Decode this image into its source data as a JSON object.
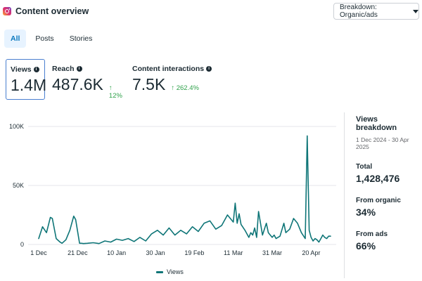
{
  "header": {
    "title": "Content overview",
    "breakdown_label": "Breakdown: Organic/ads"
  },
  "tabs": [
    {
      "label": "All",
      "active": true
    },
    {
      "label": "Posts",
      "active": false
    },
    {
      "label": "Stories",
      "active": false
    }
  ],
  "metrics": [
    {
      "label": "Views",
      "value": "1.4M",
      "change": "",
      "selected": true
    },
    {
      "label": "Reach",
      "value": "487.6K",
      "change": "12%",
      "selected": false
    },
    {
      "label": "Content interactions",
      "value": "7.5K",
      "change": "262.4%",
      "selected": false
    }
  ],
  "colors": {
    "line": "#0e7577",
    "positive": "#31a24c",
    "selected_border": "#4a7fd0",
    "active_tab": "#0a78be"
  },
  "chart_data": {
    "type": "line",
    "series": [
      {
        "name": "Views",
        "x": [
          0,
          2,
          4,
          6,
          7,
          9,
          11,
          12,
          14,
          16,
          18,
          19,
          21,
          22,
          23,
          25,
          28,
          31,
          34,
          37,
          40,
          43,
          46,
          49,
          52,
          55,
          58,
          61,
          64,
          67,
          70,
          73,
          76,
          79,
          82,
          85,
          88,
          91,
          94,
          97,
          100,
          101,
          102,
          103,
          104,
          106,
          108,
          109,
          110,
          111,
          112,
          113,
          115,
          117,
          118,
          120,
          121,
          122,
          124,
          126,
          127,
          129,
          131,
          133,
          135,
          137,
          138,
          139,
          140,
          141,
          142,
          143,
          144,
          145,
          146,
          147,
          148,
          149,
          150
        ],
        "values": [
          5000,
          15000,
          10000,
          23000,
          22000,
          5000,
          2000,
          1000,
          4000,
          12000,
          24000,
          21000,
          1000,
          1000,
          800,
          1000,
          1500,
          800,
          3000,
          2000,
          4500,
          3500,
          5000,
          2500,
          6000,
          3000,
          9000,
          12000,
          8000,
          14000,
          8000,
          12000,
          9000,
          15000,
          11000,
          18000,
          20000,
          13000,
          16000,
          25000,
          19000,
          35000,
          18000,
          26000,
          17000,
          12000,
          6000,
          10000,
          8000,
          14000,
          6000,
          28000,
          8000,
          18000,
          10000,
          6000,
          8000,
          5000,
          7000,
          18000,
          10000,
          13000,
          22000,
          18000,
          10000,
          5000,
          92000,
          12000,
          6000,
          3000,
          5000,
          4000,
          2000,
          5000,
          8000,
          6000,
          5000,
          7000,
          7000
        ]
      }
    ],
    "x_tick_labels": [
      "1 Dec",
      "21 Dec",
      "10 Jan",
      "30 Jan",
      "19 Feb",
      "11 Mar",
      "31 Mar",
      "20 Apr"
    ],
    "x_ticks_days": [
      0,
      20,
      40,
      60,
      80,
      100,
      120,
      140
    ],
    "y_tick_labels": [
      "100K",
      "50K",
      "0"
    ],
    "y_ticks": [
      100000,
      50000,
      0
    ],
    "ylim": [
      0,
      100000
    ],
    "xlim": [
      0,
      150
    ],
    "grid": "horizontal",
    "legend_position": "bottom"
  },
  "views_breakdown": {
    "title": "Views breakdown",
    "date_range": "1 Dec 2024 - 30 Apr 2025",
    "total_label": "Total",
    "total_value": "1,428,476",
    "organic_label": "From organic",
    "organic_value": "34%",
    "ads_label": "From ads",
    "ads_value": "66%"
  }
}
